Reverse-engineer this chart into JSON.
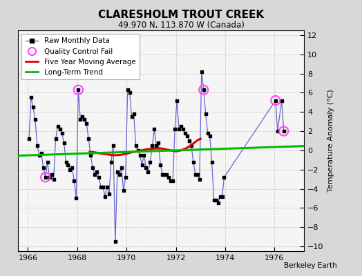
{
  "title": "CLARESHOLM TROUT CREEK",
  "subtitle": "49.970 N, 113.870 W (Canada)",
  "ylabel": "Temperature Anomaly (°C)",
  "attribution": "Berkeley Earth",
  "xlim": [
    1965.6,
    1977.2
  ],
  "ylim": [
    -10.5,
    12.5
  ],
  "yticks": [
    -10,
    -8,
    -6,
    -4,
    -2,
    0,
    2,
    4,
    6,
    8,
    10,
    12
  ],
  "xticks": [
    1966,
    1968,
    1970,
    1972,
    1974,
    1976
  ],
  "bg_color": "#d8d8d8",
  "plot_bg_color": "#f5f5f5",
  "raw_color": "#6666cc",
  "marker_color": "#000000",
  "qc_color": "#ff44ff",
  "moving_avg_color": "#dd0000",
  "trend_color": "#00bb00",
  "raw_monthly": [
    [
      1966.042,
      1.2
    ],
    [
      1966.125,
      5.5
    ],
    [
      1966.208,
      4.5
    ],
    [
      1966.292,
      3.2
    ],
    [
      1966.375,
      0.5
    ],
    [
      1966.458,
      -0.5
    ],
    [
      1966.542,
      -0.3
    ],
    [
      1966.625,
      -1.8
    ],
    [
      1966.708,
      -2.8
    ],
    [
      1966.792,
      -1.2
    ],
    [
      1966.875,
      -2.8
    ],
    [
      1966.958,
      -2.5
    ],
    [
      1967.042,
      -3.0
    ],
    [
      1967.125,
      1.2
    ],
    [
      1967.208,
      2.5
    ],
    [
      1967.292,
      2.2
    ],
    [
      1967.375,
      1.8
    ],
    [
      1967.458,
      0.8
    ],
    [
      1967.542,
      -1.2
    ],
    [
      1967.625,
      -1.5
    ],
    [
      1967.708,
      -2.0
    ],
    [
      1967.792,
      -1.8
    ],
    [
      1967.875,
      -3.2
    ],
    [
      1967.958,
      -5.0
    ],
    [
      1968.042,
      6.3
    ],
    [
      1968.125,
      3.2
    ],
    [
      1968.208,
      3.5
    ],
    [
      1968.292,
      3.2
    ],
    [
      1968.375,
      2.8
    ],
    [
      1968.458,
      1.2
    ],
    [
      1968.542,
      -0.5
    ],
    [
      1968.625,
      -1.8
    ],
    [
      1968.708,
      -2.5
    ],
    [
      1968.792,
      -2.2
    ],
    [
      1968.875,
      -2.8
    ],
    [
      1968.958,
      -3.8
    ],
    [
      1969.042,
      -3.8
    ],
    [
      1969.125,
      -4.8
    ],
    [
      1969.208,
      -3.8
    ],
    [
      1969.292,
      -4.5
    ],
    [
      1969.375,
      -1.2
    ],
    [
      1969.458,
      0.5
    ],
    [
      1969.542,
      -9.5
    ],
    [
      1969.625,
      -2.2
    ],
    [
      1969.708,
      -2.5
    ],
    [
      1969.792,
      -1.8
    ],
    [
      1969.875,
      -4.2
    ],
    [
      1969.958,
      -2.8
    ],
    [
      1970.042,
      6.3
    ],
    [
      1970.125,
      6.0
    ],
    [
      1970.208,
      3.5
    ],
    [
      1970.292,
      3.8
    ],
    [
      1970.375,
      0.5
    ],
    [
      1970.458,
      0.0
    ],
    [
      1970.542,
      -0.5
    ],
    [
      1970.625,
      -1.5
    ],
    [
      1970.708,
      -0.5
    ],
    [
      1970.792,
      -1.8
    ],
    [
      1970.875,
      -2.2
    ],
    [
      1970.958,
      -1.2
    ],
    [
      1971.042,
      0.5
    ],
    [
      1971.125,
      2.2
    ],
    [
      1971.208,
      0.5
    ],
    [
      1971.292,
      0.8
    ],
    [
      1971.375,
      -1.5
    ],
    [
      1971.458,
      -2.5
    ],
    [
      1971.542,
      -2.5
    ],
    [
      1971.625,
      -2.5
    ],
    [
      1971.708,
      -2.8
    ],
    [
      1971.792,
      -3.2
    ],
    [
      1971.875,
      -3.2
    ],
    [
      1971.958,
      2.2
    ],
    [
      1972.042,
      5.2
    ],
    [
      1972.125,
      2.2
    ],
    [
      1972.208,
      2.5
    ],
    [
      1972.292,
      2.2
    ],
    [
      1972.375,
      1.8
    ],
    [
      1972.458,
      1.5
    ],
    [
      1972.542,
      1.0
    ],
    [
      1972.625,
      0.5
    ],
    [
      1972.708,
      -1.2
    ],
    [
      1972.792,
      -2.5
    ],
    [
      1972.875,
      -2.5
    ],
    [
      1972.958,
      -3.0
    ],
    [
      1973.042,
      8.2
    ],
    [
      1973.125,
      6.3
    ],
    [
      1973.208,
      3.8
    ],
    [
      1973.292,
      1.8
    ],
    [
      1973.375,
      1.5
    ],
    [
      1973.458,
      -1.2
    ],
    [
      1973.542,
      -5.2
    ],
    [
      1973.625,
      -5.2
    ],
    [
      1973.708,
      -5.5
    ],
    [
      1973.792,
      -4.8
    ],
    [
      1973.875,
      -4.8
    ],
    [
      1973.958,
      -2.8
    ],
    [
      1976.042,
      5.2
    ],
    [
      1976.125,
      2.0
    ],
    [
      1976.292,
      5.2
    ],
    [
      1976.375,
      2.0
    ]
  ],
  "qc_fail": [
    [
      1966.708,
      -2.8
    ],
    [
      1968.042,
      6.3
    ],
    [
      1973.125,
      6.3
    ],
    [
      1976.042,
      5.2
    ],
    [
      1976.375,
      2.0
    ]
  ],
  "moving_avg": [
    [
      1968.5,
      -0.15
    ],
    [
      1968.7,
      -0.2
    ],
    [
      1968.9,
      -0.3
    ],
    [
      1969.0,
      -0.35
    ],
    [
      1969.2,
      -0.4
    ],
    [
      1969.4,
      -0.5
    ],
    [
      1969.6,
      -0.5
    ],
    [
      1969.8,
      -0.45
    ],
    [
      1970.0,
      -0.35
    ],
    [
      1970.2,
      -0.2
    ],
    [
      1970.4,
      -0.1
    ],
    [
      1970.6,
      0.0
    ],
    [
      1970.8,
      0.1
    ],
    [
      1971.0,
      0.15
    ],
    [
      1971.2,
      0.2
    ],
    [
      1971.4,
      0.2
    ],
    [
      1971.6,
      0.1
    ],
    [
      1971.8,
      0.0
    ],
    [
      1972.0,
      -0.1
    ],
    [
      1972.2,
      0.0
    ],
    [
      1972.4,
      0.2
    ],
    [
      1972.6,
      0.5
    ],
    [
      1972.8,
      0.9
    ],
    [
      1972.9,
      1.1
    ],
    [
      1973.0,
      1.2
    ]
  ],
  "trend_x": [
    1965.6,
    1977.2
  ],
  "trend_y": [
    -0.55,
    0.45
  ]
}
